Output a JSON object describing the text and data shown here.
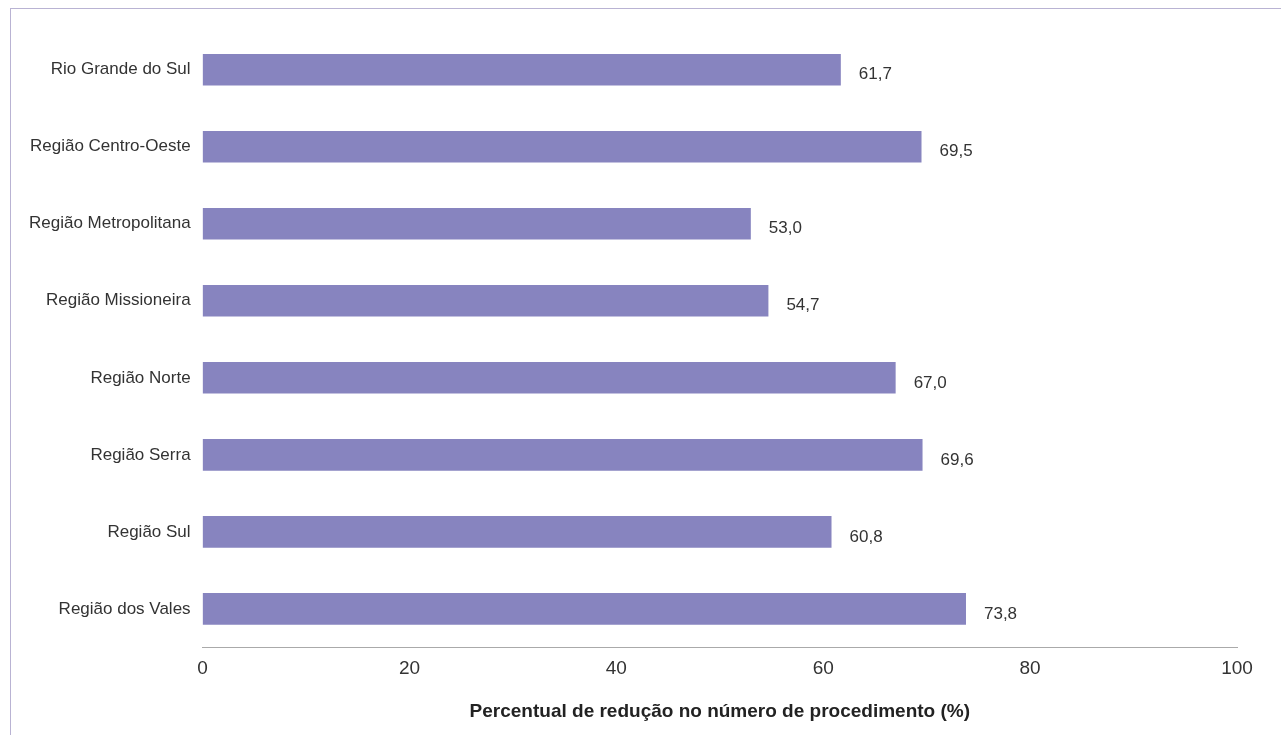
{
  "chart_data": {
    "type": "bar",
    "orientation": "horizontal",
    "xlabel": "Percentual de redução no número de procedimento (%)",
    "categories": [
      "Rio Grande do Sul",
      "Região Centro-Oeste",
      "Região Metropolitana",
      "Região Missioneira",
      "Região Norte",
      "Região Serra",
      "Região Sul",
      "Região dos Vales"
    ],
    "values": [
      61.7,
      69.5,
      53.0,
      54.7,
      67.0,
      69.6,
      60.8,
      73.8
    ],
    "value_labels": [
      "61,7",
      "69,5",
      "53,0",
      "54,7",
      "67,0",
      "69,6",
      "60,8",
      "73,8"
    ],
    "color": "#8784bf",
    "xlim": [
      0,
      100
    ],
    "xticks": [
      0,
      20,
      40,
      60,
      80,
      100
    ],
    "grid": false,
    "legend": false
  }
}
